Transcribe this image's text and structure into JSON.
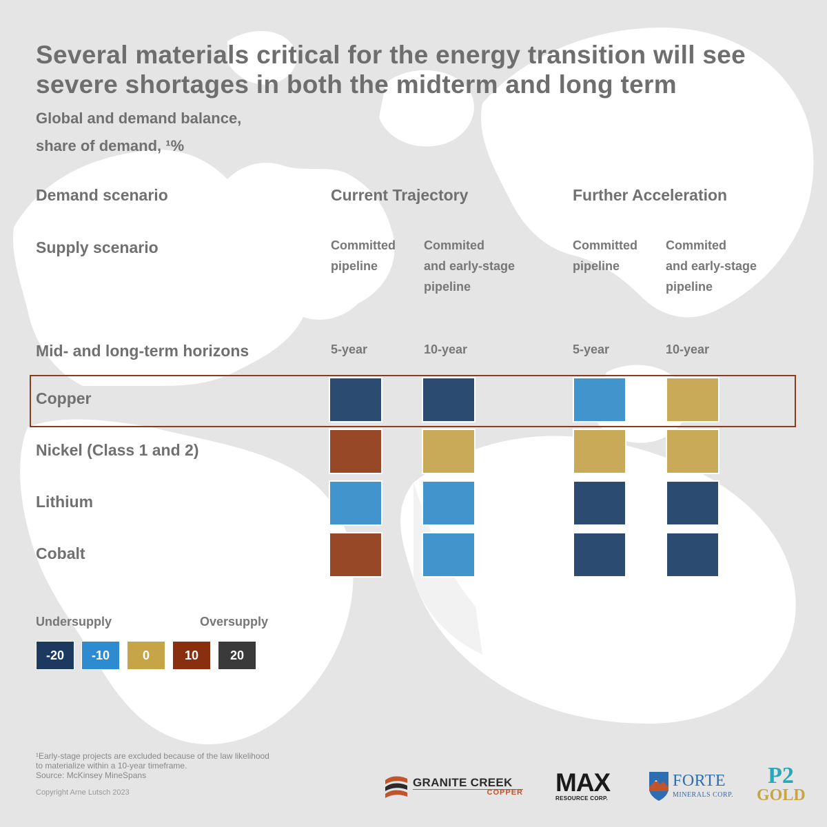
{
  "title": "Several materials critical for the energy transition will see severe shortages in both the midterm and long term",
  "subtitle_line1": "Global and demand balance,",
  "subtitle_line2": "share of demand, ¹%",
  "row_labels": {
    "demand": "Demand scenario",
    "supply": "Supply scenario",
    "horizons": "Mid- and long-term horizons"
  },
  "demand_scenarios": [
    "Current Trajectory",
    "Further Acceleration"
  ],
  "supply_scenarios": [
    [
      "Committed",
      "pipeline"
    ],
    [
      "Commited",
      "and early-stage",
      "pipeline"
    ],
    [
      "Committed",
      "pipeline"
    ],
    [
      "Commited",
      "and early-stage",
      "pipeline"
    ]
  ],
  "horizons": [
    "5-year",
    "10-year",
    "5-year",
    "10-year"
  ],
  "chart_data": {
    "type": "heatmap",
    "rows": [
      "Copper",
      "Nickel (Class 1 and 2)",
      "Lithium",
      "Cobalt"
    ],
    "values": [
      [
        -20,
        -20,
        -10,
        0
      ],
      [
        10,
        0,
        0,
        0
      ],
      [
        -10,
        -10,
        -20,
        -20
      ],
      [
        10,
        -10,
        -20,
        -20
      ]
    ],
    "highlighted_row": "Copper"
  },
  "legend": {
    "left_label": "Undersupply",
    "right_label": "Oversupply",
    "items": [
      {
        "label": "-20",
        "value": -20,
        "color": "#1c3a60"
      },
      {
        "label": "-10",
        "value": -10,
        "color": "#2e8bd0"
      },
      {
        "label": "0",
        "value": 0,
        "color": "#c6a548"
      },
      {
        "label": "10",
        "value": 10,
        "color": "#8a2e10"
      },
      {
        "label": "20",
        "value": 20,
        "color": "#3a3a3a"
      }
    ]
  },
  "cell_colors": {
    "-20": "#2c4b70",
    "-10": "#4294cd",
    "0": "#c9aa59",
    "10": "#974826",
    "20": "#3a3a3a"
  },
  "footnote": "¹Early-stage projects are excluded because of the law likelihood to materialize within a 10-year timeframe.",
  "source": "Source: McKinsey MineSpans",
  "copyright": "Copyright Arne Lutsch 2023",
  "logos": {
    "granite_creek": {
      "line1": "GRANITE CREEK",
      "line2": "COPPER"
    },
    "max": {
      "line1": "MAX",
      "line2": "RESOURCE CORP."
    },
    "forte": {
      "line1": "FORTE",
      "line2": "MINERALS CORP."
    },
    "p2": {
      "line1": "P2",
      "line2": "GOLD"
    }
  }
}
